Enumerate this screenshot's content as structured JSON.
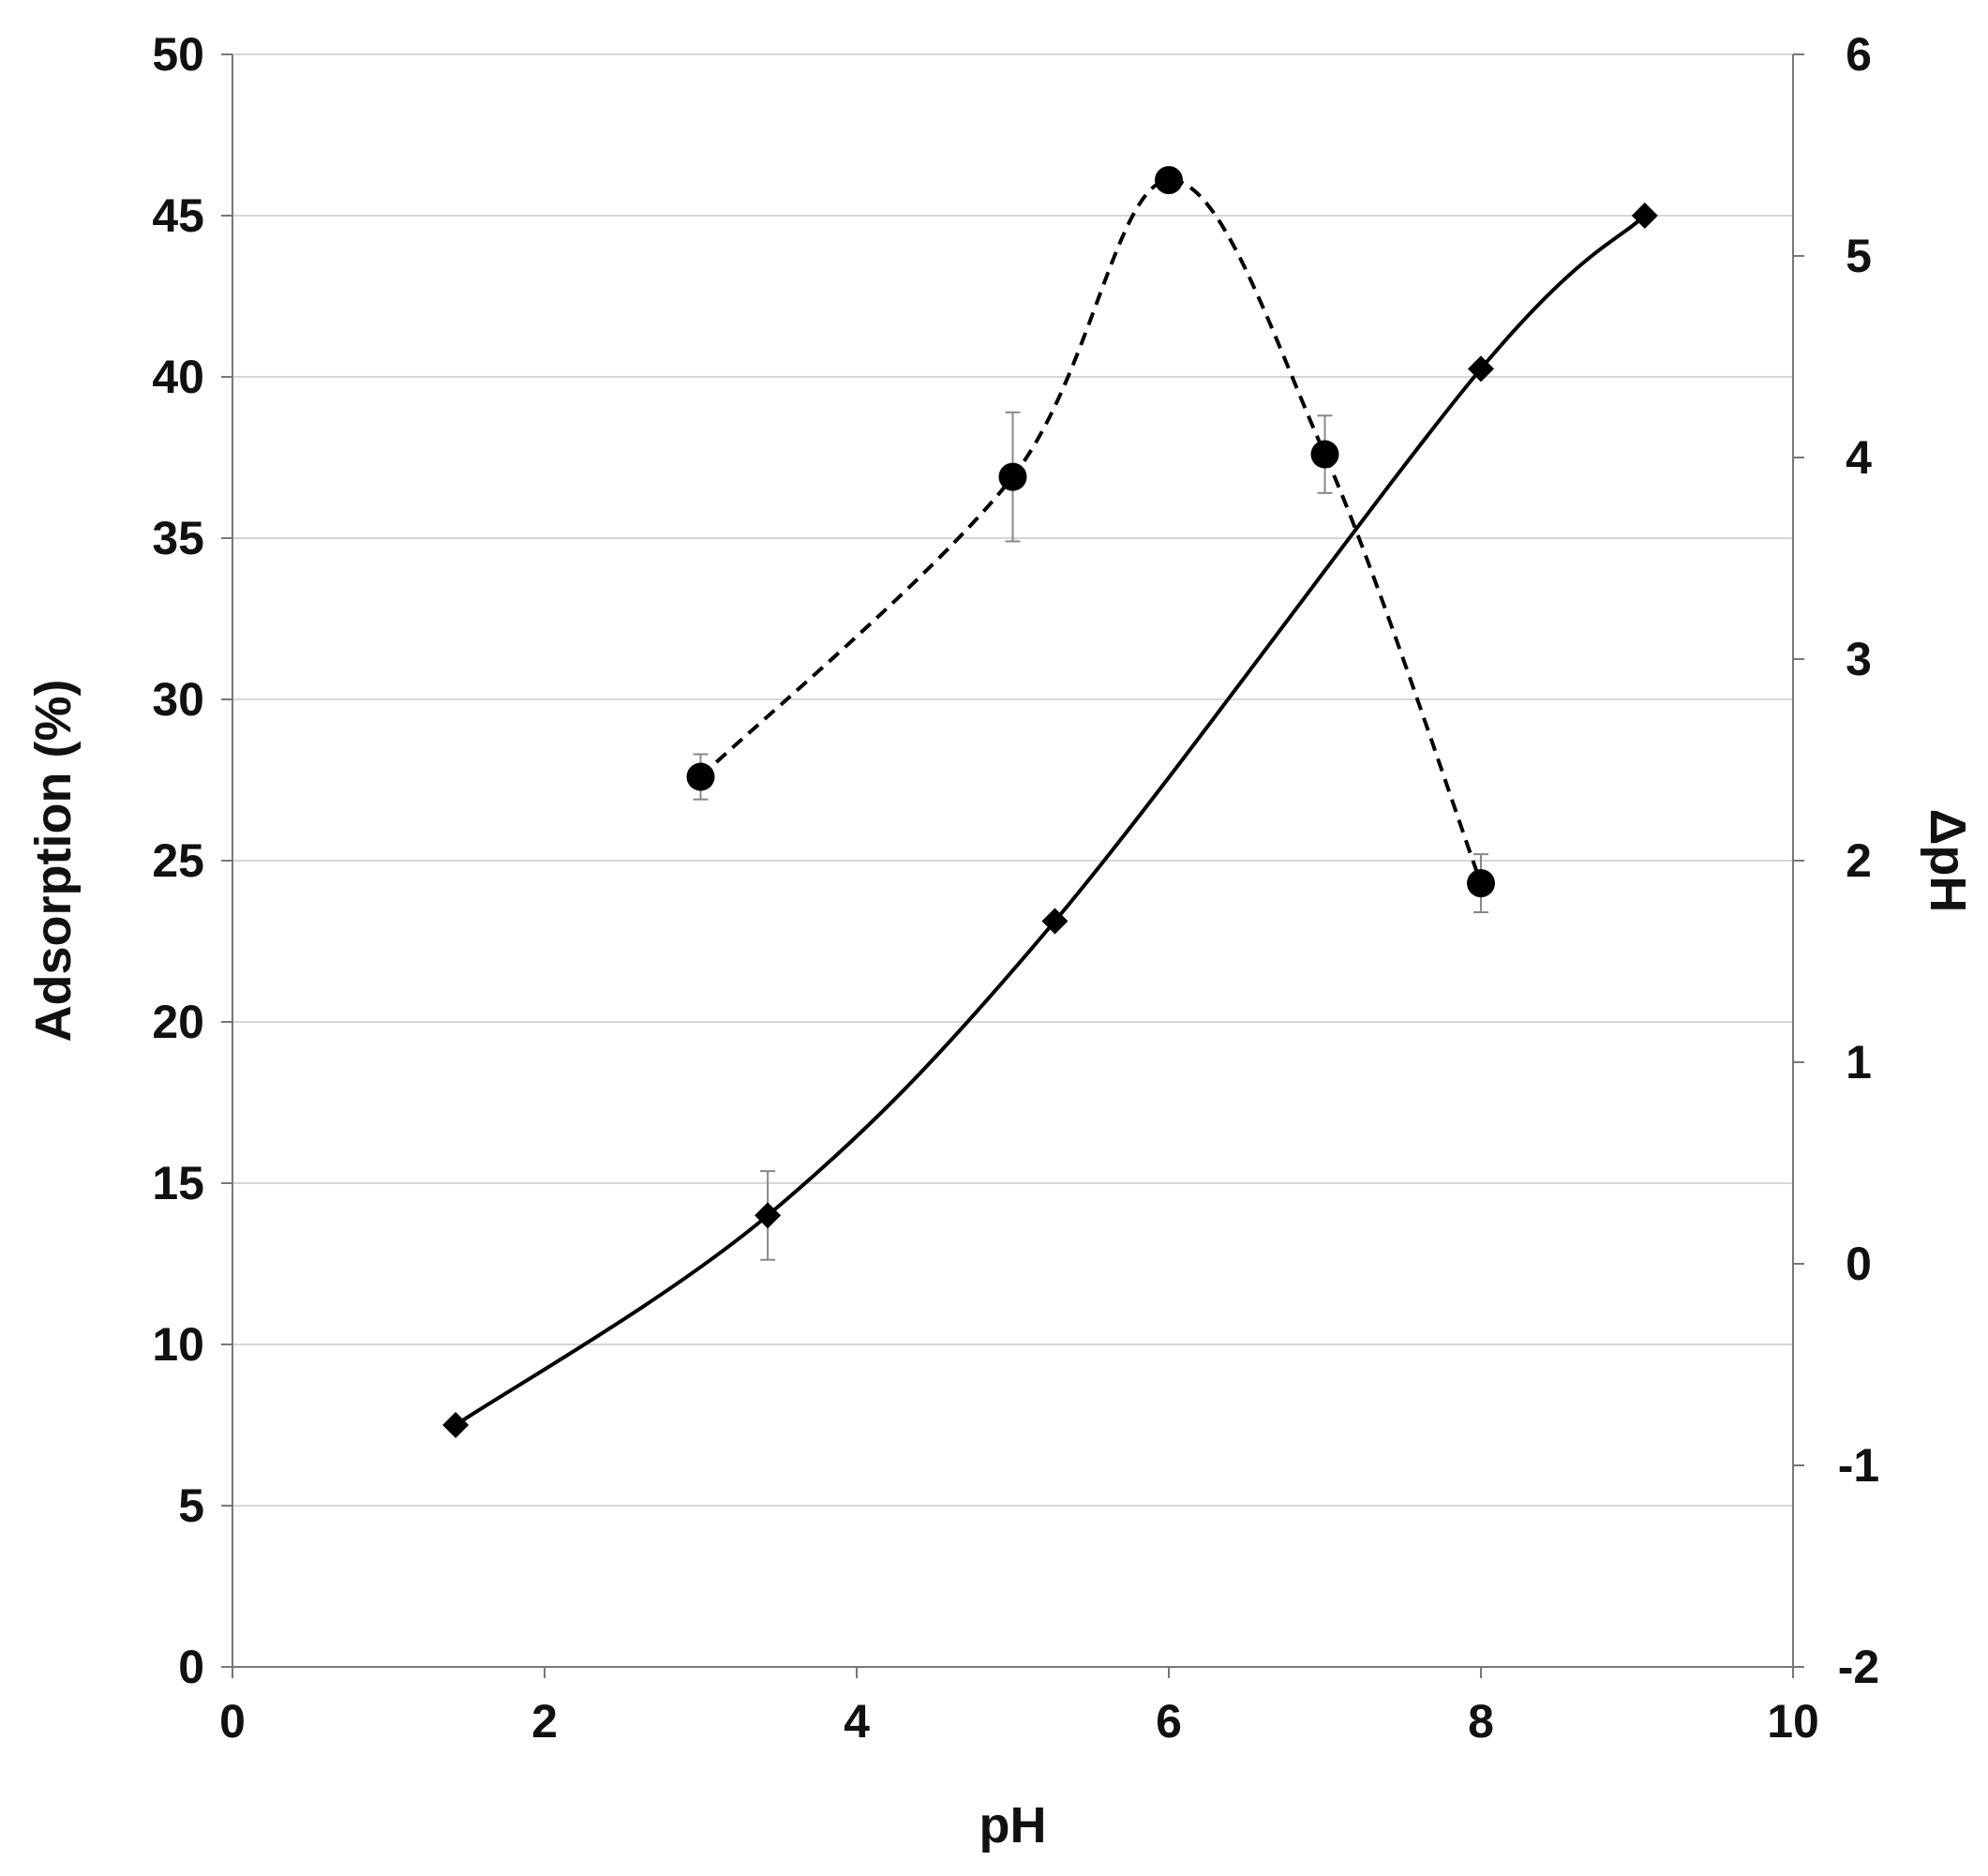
{
  "chart_data": {
    "type": "scatter",
    "xlabel": "pH",
    "ylabel": "Adsorption (%)",
    "y2label": "ΔpH",
    "xlim": [
      0,
      10
    ],
    "ylim": [
      0,
      50
    ],
    "y2lim": [
      -2,
      6
    ],
    "x_ticks": [
      "0",
      "2",
      "4",
      "6",
      "8",
      "10"
    ],
    "y_ticks": [
      "0",
      "5",
      "10",
      "15",
      "20",
      "25",
      "30",
      "35",
      "40",
      "45",
      "50"
    ],
    "y2_ticks": [
      "-2",
      "-1",
      "0",
      "1",
      "2",
      "3",
      "4",
      "5",
      "6"
    ],
    "grid": true,
    "series": [
      {
        "axis": "left",
        "marker": "circle",
        "line": "dashed",
        "color": "#000000",
        "x": [
          3,
          5,
          6,
          7,
          8
        ],
        "y": [
          27.6,
          36.9,
          46.1,
          37.6,
          24.3
        ],
        "error": [
          0.7,
          2.0,
          0.3,
          1.2,
          0.9
        ]
      },
      {
        "axis": "right",
        "marker": "diamond",
        "line": "solid",
        "color": "#000000",
        "x": [
          1.43,
          3.43,
          5.27,
          8.0,
          9.05
        ],
        "y": [
          -0.8,
          0.24,
          1.7,
          4.44,
          5.2
        ],
        "error": [
          0,
          0.22,
          0,
          0,
          0
        ]
      }
    ]
  }
}
